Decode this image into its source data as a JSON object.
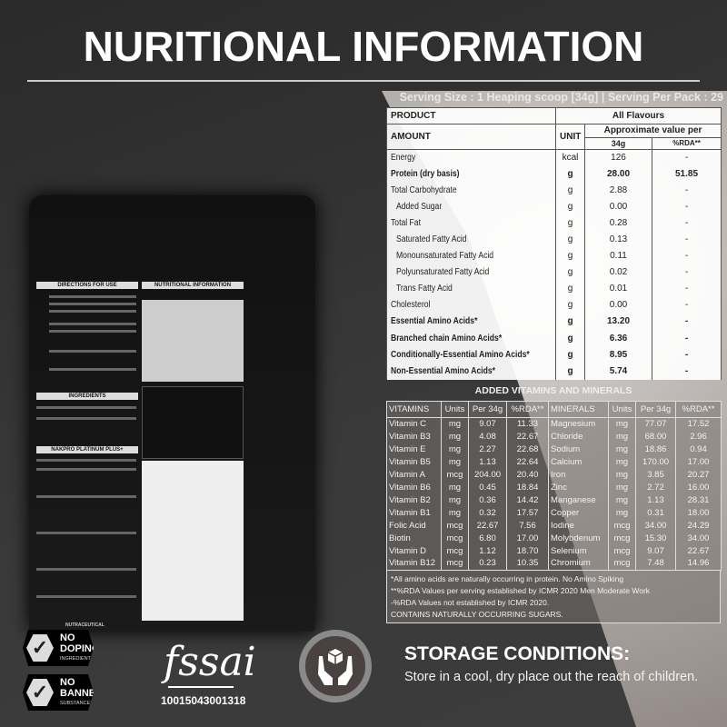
{
  "title": "NURITIONAL INFORMATION",
  "serving": "Serving Size : 1 Heaping scoop [34g] | Serving Per Pack : 29",
  "nutrition": {
    "product_label": "PRODUCT",
    "flavours": "All Flavours",
    "amount_label": "AMOUNT",
    "unit_label": "UNIT",
    "approx_label": "Approximate value per",
    "col_34g": "34g",
    "col_rda": "%RDA**",
    "rows": [
      {
        "name": "Energy",
        "unit": "kcal",
        "value": "126",
        "rda": "-",
        "bold": false,
        "indent": false
      },
      {
        "name": "Protein (dry basis)",
        "unit": "g",
        "value": "28.00",
        "rda": "51.85",
        "bold": true,
        "indent": false
      },
      {
        "name": "Total Carbohydrate",
        "unit": "g",
        "value": "2.88",
        "rda": "-",
        "bold": false,
        "indent": false
      },
      {
        "name": "Added Sugar",
        "unit": "g",
        "value": "0.00",
        "rda": "-",
        "bold": false,
        "indent": true
      },
      {
        "name": "Total Fat",
        "unit": "g",
        "value": "0.28",
        "rda": "-",
        "bold": false,
        "indent": false
      },
      {
        "name": "Saturated Fatty Acid",
        "unit": "g",
        "value": "0.13",
        "rda": "-",
        "bold": false,
        "indent": true
      },
      {
        "name": "Monounsaturated Fatty Acid",
        "unit": "g",
        "value": "0.11",
        "rda": "-",
        "bold": false,
        "indent": true
      },
      {
        "name": "Polyunsaturated Fatty Acid",
        "unit": "g",
        "value": "0.02",
        "rda": "-",
        "bold": false,
        "indent": true
      },
      {
        "name": "Trans Fatty Acid",
        "unit": "g",
        "value": "0.01",
        "rda": "-",
        "bold": false,
        "indent": true
      },
      {
        "name": "Cholesterol",
        "unit": "g",
        "value": "0.00",
        "rda": "-",
        "bold": false,
        "indent": false
      },
      {
        "name": "Essential Amino Acids*",
        "unit": "g",
        "value": "13.20",
        "rda": "-",
        "bold": true,
        "indent": false
      },
      {
        "name": "Branched chain Amino Acids*",
        "unit": "g",
        "value": "6.36",
        "rda": "-",
        "bold": true,
        "indent": false
      },
      {
        "name": "Conditionally-Essential Amino Acids*",
        "unit": "g",
        "value": "8.95",
        "rda": "-",
        "bold": true,
        "indent": false
      },
      {
        "name": "Non-Essential Amino Acids*",
        "unit": "g",
        "value": "5.74",
        "rda": "-",
        "bold": true,
        "indent": false
      }
    ]
  },
  "vitamins_minerals": {
    "title": "ADDED VITAMINS AND MINERALS",
    "headers": [
      "VITAMINS",
      "Units",
      "Per 34g",
      "%RDA**",
      "MINERALS",
      "Units",
      "Per 34g",
      "%RDA**"
    ],
    "rows": [
      [
        "Vitamin C",
        "mg",
        "9.07",
        "11.33",
        "Magnesium",
        "mg",
        "77.07",
        "17.52"
      ],
      [
        "Vitamin B3",
        "mg",
        "4.08",
        "22.67",
        "Chloride",
        "mg",
        "68.00",
        "2.96"
      ],
      [
        "Vitamin E",
        "mg",
        "2.27",
        "22.68",
        "Sodium",
        "mg",
        "18.86",
        "0.94"
      ],
      [
        "Vitamin B5",
        "mg",
        "1.13",
        "22.64",
        "Calcium",
        "mg",
        "170.00",
        "17.00"
      ],
      [
        "Vitamin A",
        "mcg",
        "204.00",
        "20.40",
        "Iron",
        "mg",
        "3.85",
        "20.27"
      ],
      [
        "Vitamin B6",
        "mg",
        "0.45",
        "18.84",
        "Zinc",
        "mg",
        "2.72",
        "16.00"
      ],
      [
        "Vitamin B2",
        "mg",
        "0.36",
        "14.42",
        "Manganese",
        "mg",
        "1.13",
        "28.31"
      ],
      [
        "Vitamin B1",
        "mg",
        "0.32",
        "17.57",
        "Copper",
        "mg",
        "0.31",
        "18.00"
      ],
      [
        "Folic Acid",
        "mcg",
        "22.67",
        "7.56",
        "Iodine",
        "mcg",
        "34.00",
        "24.29"
      ],
      [
        "Biotin",
        "mcg",
        "6.80",
        "17.00",
        "Molybdenum",
        "mcg",
        "15.30",
        "34.00"
      ],
      [
        "Vitamin D",
        "mcg",
        "1.12",
        "18.70",
        "Selenium",
        "mcg",
        "9.07",
        "22.67"
      ],
      [
        "Vitamin B12",
        "mcg",
        "0.23",
        "10.35",
        "Chromium",
        "mcg",
        "7.48",
        "14.96"
      ]
    ],
    "notes": [
      "*All amino acids are naturally occurring in protein. No Amino Spiking",
      "**%RDA Values per serving established by ICMR 2020 Men Moderate Work",
      "-%RDA Values not established by ICMR 2020.",
      "CONTAINS NATURALLY OCCURRING SUGARS."
    ]
  },
  "pouch": {
    "directions": "DIRECTIONS FOR USE",
    "nutrition": "NUTRITIONAL INFORMATION",
    "ingredients": "INGREDIENTS",
    "product": "NAKPRO PLATINUM PLUS+",
    "brand_footer": "NUTRACEUTICAL"
  },
  "badges": [
    {
      "line1": "NO",
      "line2": "DOPING",
      "line3": "INGREDIENT"
    },
    {
      "line1": "NO",
      "line2": "BANNED",
      "line3": "SUBSTANCES"
    }
  ],
  "fssai": {
    "logo": "fssai",
    "license": "10015043001318"
  },
  "storage": {
    "title": "STORAGE CONDITIONS:",
    "text": "Store in a cool, dry place out the reach of children.",
    "icon": "hands-holding-box-icon"
  }
}
